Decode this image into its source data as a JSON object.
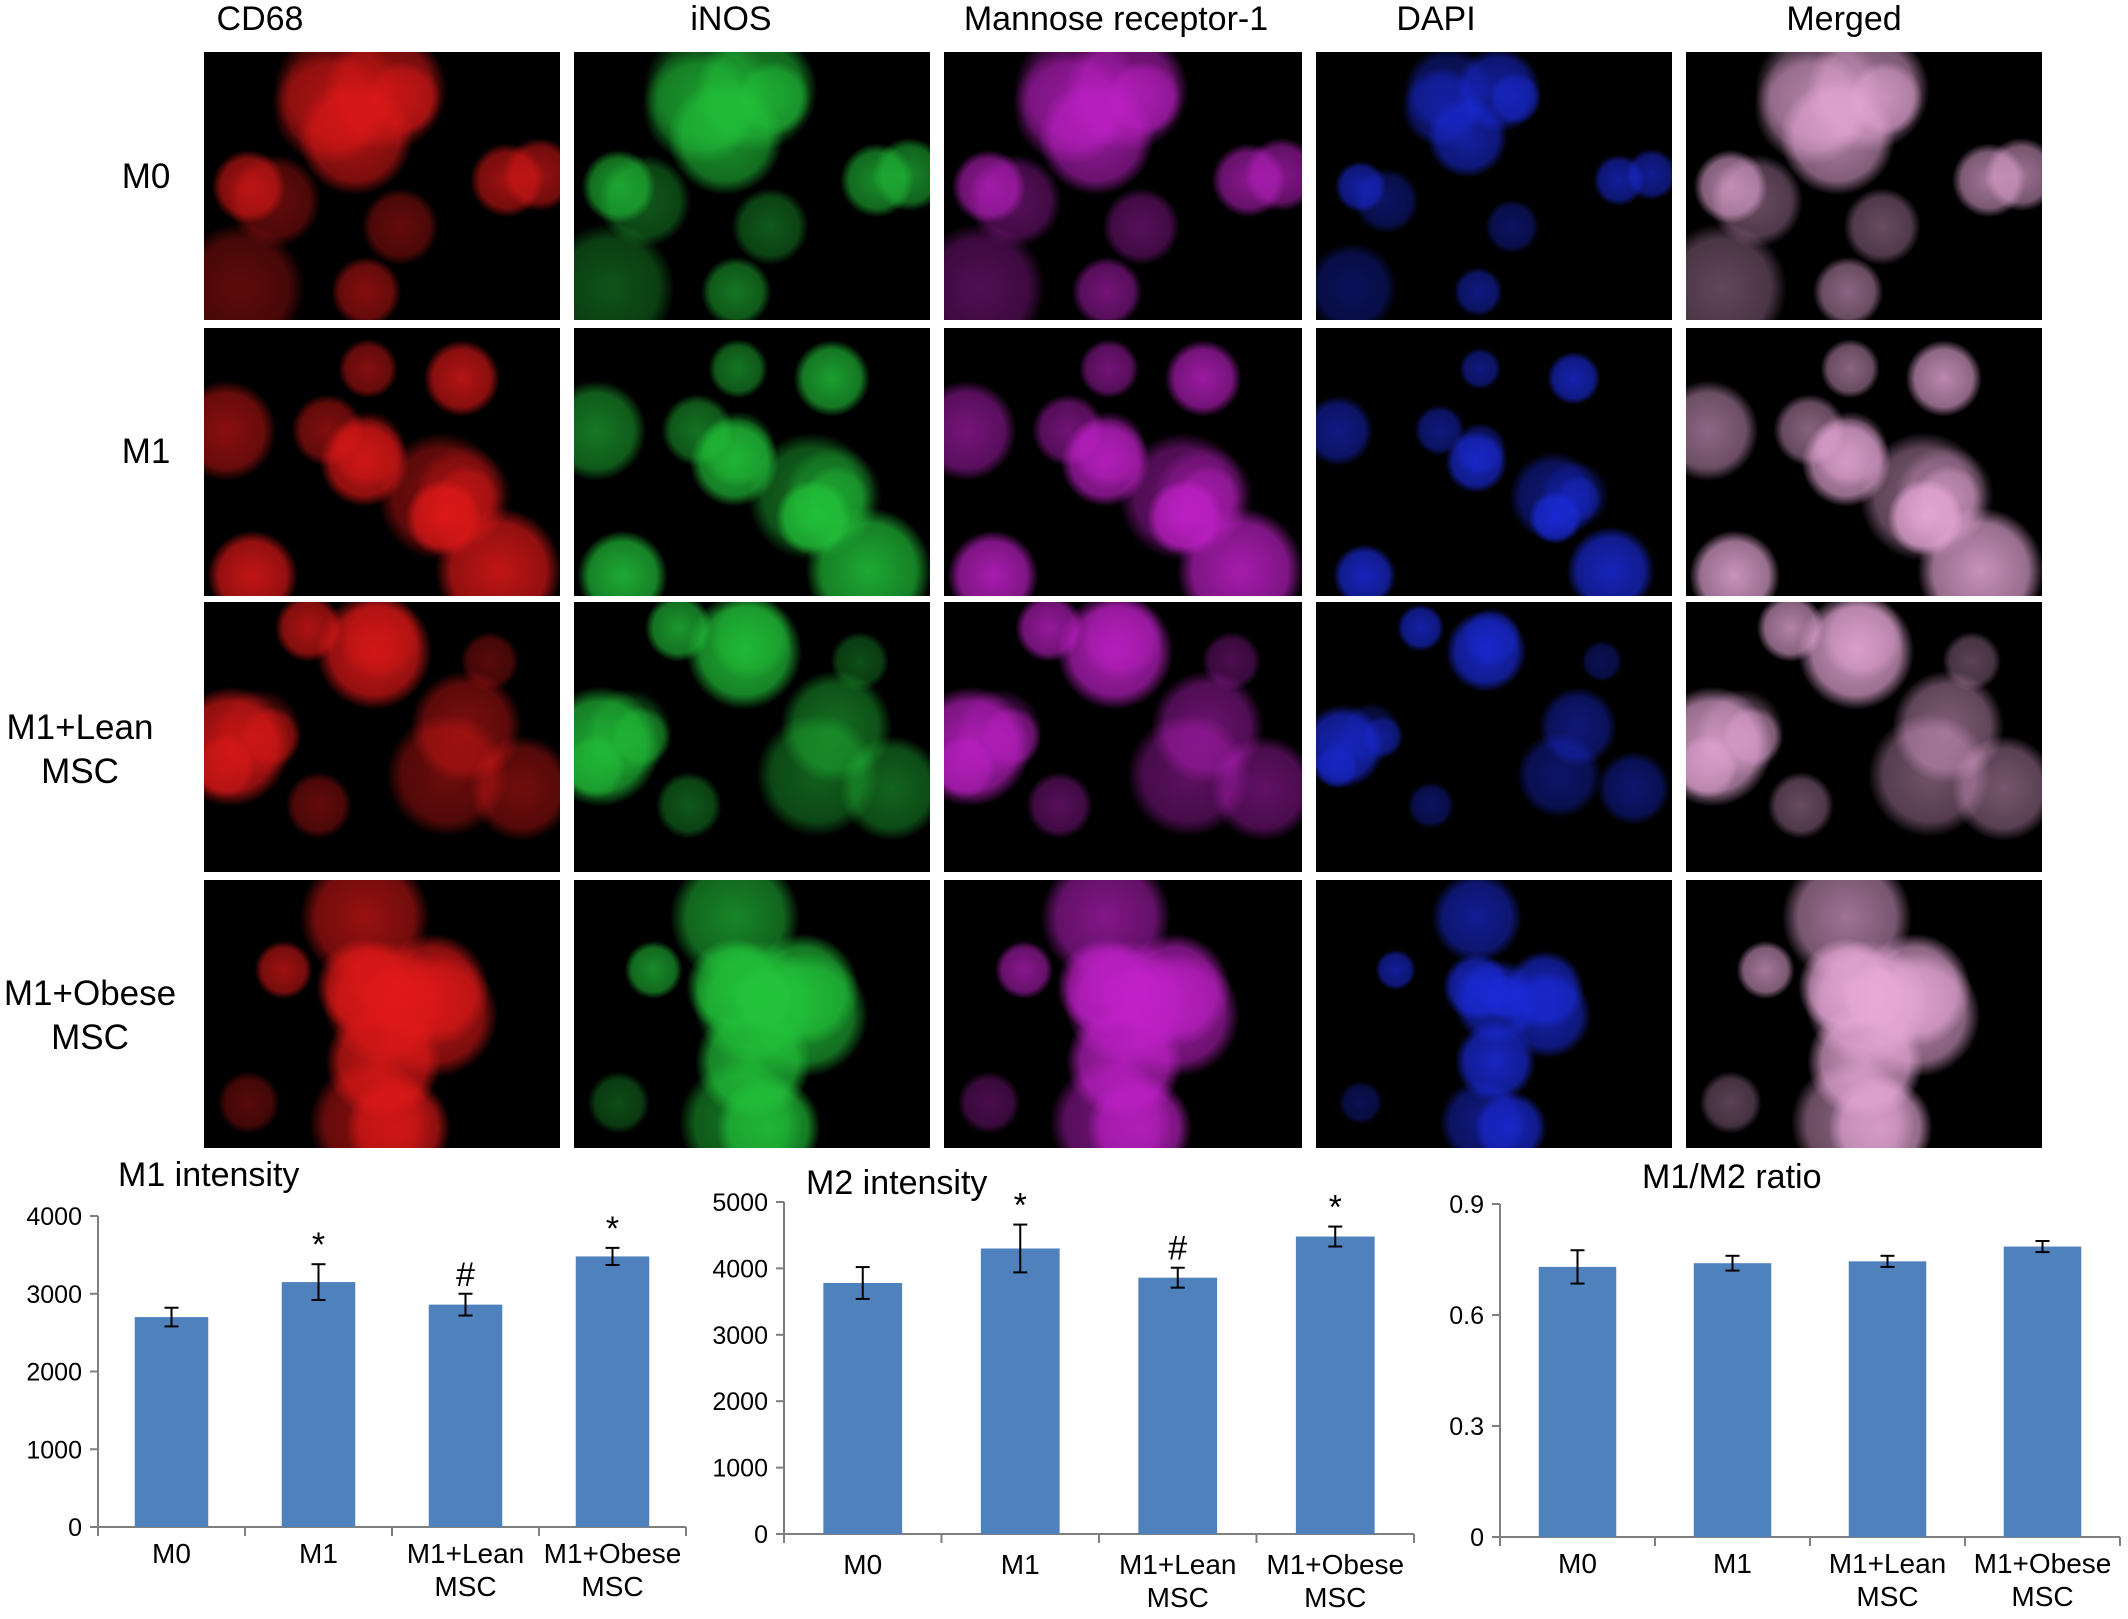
{
  "figure": {
    "columns": [
      "CD68",
      "iNOS",
      "Mannose receptor-1",
      "DAPI",
      "Merged"
    ],
    "rows": [
      {
        "label_lines": [
          "M0"
        ]
      },
      {
        "label_lines": [
          "M1"
        ]
      },
      {
        "label_lines": [
          "M1+Lean",
          "MSC"
        ]
      },
      {
        "label_lines": [
          "M1+Obese",
          "MSC"
        ]
      }
    ],
    "channel_colors": {
      "CD68": "#e01818",
      "iNOS": "#22c43a",
      "Mannose receptor-1": "#c020c8",
      "DAPI": "#1a2ad8",
      "Merged": "#e8a8d8"
    }
  },
  "chart_data": [
    {
      "type": "bar",
      "title": "M1 intensity",
      "categories": [
        "M0",
        "M1",
        "M1+Lean\nMSC",
        "M1+Obese\nMSC"
      ],
      "values": [
        2700,
        3150,
        2860,
        3480
      ],
      "errors": [
        120,
        230,
        140,
        110
      ],
      "markers": [
        "",
        "*",
        "#",
        "*"
      ],
      "ylim": [
        0,
        4000
      ],
      "yticks": [
        0,
        1000,
        2000,
        3000,
        4000
      ],
      "ytick_labels": [
        "0",
        "1000",
        "2000",
        "3000",
        "4000"
      ],
      "bar_color": "#4f81bd",
      "grid": false,
      "xlabel": "",
      "ylabel": ""
    },
    {
      "type": "bar",
      "title": "M2 intensity",
      "categories": [
        "M0",
        "M1",
        "M1+Lean\nMSC",
        "M1+Obese\nMSC"
      ],
      "values": [
        3780,
        4300,
        3860,
        4480
      ],
      "errors": [
        240,
        360,
        150,
        150
      ],
      "markers": [
        "",
        "*",
        "#",
        "*"
      ],
      "ylim": [
        0,
        5000
      ],
      "yticks": [
        0,
        1000,
        2000,
        3000,
        4000,
        5000
      ],
      "ytick_labels": [
        "0",
        "1000",
        "2000",
        "3000",
        "4000",
        "5000"
      ],
      "bar_color": "#4f81bd",
      "grid": false,
      "xlabel": "",
      "ylabel": ""
    },
    {
      "type": "bar",
      "title": "M1/M2 ratio",
      "categories": [
        "M0",
        "M1",
        "M1+Lean\nMSC",
        "M1+Obese\nMSC"
      ],
      "values": [
        0.73,
        0.74,
        0.745,
        0.785
      ],
      "errors": [
        0.045,
        0.02,
        0.015,
        0.015
      ],
      "markers": [
        "",
        "",
        "",
        ""
      ],
      "ylim": [
        0,
        0.9
      ],
      "yticks": [
        0,
        0.3,
        0.6,
        0.9
      ],
      "ytick_labels": [
        "0",
        "0.3",
        "0.6",
        "0.9"
      ],
      "bar_color": "#4f81bd",
      "grid": false,
      "xlabel": "",
      "ylabel": ""
    }
  ]
}
